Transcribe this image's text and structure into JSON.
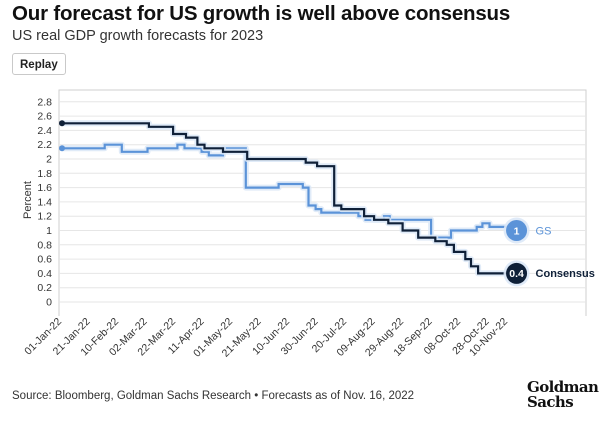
{
  "header": {
    "title": "Our forecast for US growth is well above consensus",
    "subtitle": "US real GDP growth forecasts for 2023",
    "replay_label": "Replay"
  },
  "footer": {
    "source": "Source: Bloomberg, Goldman Sachs Research • Forecasts as of Nov. 16, 2022",
    "logo_line1": "Goldman",
    "logo_line2": "Sachs"
  },
  "colors": {
    "gs": "#5b93d8",
    "consensus": "#0f2038",
    "grid": "#e6e6e6",
    "halo": "#dbe8f7"
  },
  "chart_data": {
    "type": "line",
    "title": "",
    "xlabel": "",
    "ylabel": "Percent",
    "ylim": [
      0,
      2.8
    ],
    "yticks": [
      0,
      0.2,
      0.4,
      0.6,
      0.8,
      1,
      1.2,
      1.4,
      1.6,
      1.8,
      2,
      2.2,
      2.4,
      2.6,
      2.8
    ],
    "ytick_labels": [
      "0",
      "0.2",
      "0.4",
      "0.6",
      "0.8",
      "1",
      "1.2",
      "1.4",
      "1.6",
      "1.8",
      "2",
      "2.2",
      "2.4",
      "2.6",
      "2.8"
    ],
    "xlim": [
      "2022-01-01",
      "2022-11-16"
    ],
    "xticks": [
      "2022-01-01",
      "2022-01-21",
      "2022-02-10",
      "2022-03-02",
      "2022-03-22",
      "2022-04-11",
      "2022-05-01",
      "2022-05-21",
      "2022-06-10",
      "2022-06-30",
      "2022-07-20",
      "2022-08-09",
      "2022-08-29",
      "2022-09-18",
      "2022-10-08",
      "2022-10-28",
      "2022-11-10"
    ],
    "xtick_labels": [
      "01-Jan-22",
      "21-Jan-22",
      "10-Feb-22",
      "02-Mar-22",
      "22-Mar-22",
      "11-Apr-22",
      "01-May-22",
      "21-May-22",
      "10-Jun-22",
      "30-Jun-22",
      "20-Jul-22",
      "09-Aug-22",
      "29-Aug-22",
      "18-Sep-22",
      "08-Oct-22",
      "28-Oct-22",
      "10-Nov-22"
    ],
    "grid": "horizontal",
    "series": [
      {
        "name": "GS",
        "end_label": "1",
        "step": true,
        "points": [
          [
            "2022-01-01",
            2.15
          ],
          [
            "2022-01-31",
            2.2
          ],
          [
            "2022-02-12",
            2.1
          ],
          [
            "2022-02-27",
            2.1
          ],
          [
            "2022-03-02",
            2.15
          ],
          [
            "2022-03-23",
            2.2
          ],
          [
            "2022-03-28",
            2.15
          ],
          [
            "2022-04-09",
            2.1
          ],
          [
            "2022-04-14",
            2.05
          ],
          [
            "2022-04-24",
            2.15
          ],
          [
            "2022-05-10",
            1.6
          ],
          [
            "2022-06-02",
            1.65
          ],
          [
            "2022-06-19",
            1.6
          ],
          [
            "2022-06-23",
            1.35
          ],
          [
            "2022-06-27",
            1.35
          ],
          [
            "2022-06-28",
            1.3
          ],
          [
            "2022-07-02",
            1.25
          ],
          [
            "2022-07-28",
            1.2
          ],
          [
            "2022-08-02",
            1.15
          ],
          [
            "2022-08-15",
            1.2
          ],
          [
            "2022-08-19",
            1.15
          ],
          [
            "2022-09-17",
            0.9
          ],
          [
            "2022-10-01",
            1.0
          ],
          [
            "2022-10-19",
            1.05
          ],
          [
            "2022-10-23",
            1.1
          ],
          [
            "2022-10-28",
            1.05
          ],
          [
            "2022-11-10",
            1.05
          ],
          [
            "2022-11-16",
            1.0
          ]
        ]
      },
      {
        "name": "Consensus",
        "end_label": "0.4",
        "step": true,
        "points": [
          [
            "2022-01-01",
            2.5
          ],
          [
            "2022-03-03",
            2.45
          ],
          [
            "2022-03-20",
            2.35
          ],
          [
            "2022-03-29",
            2.3
          ],
          [
            "2022-04-06",
            2.2
          ],
          [
            "2022-04-11",
            2.15
          ],
          [
            "2022-04-24",
            2.1
          ],
          [
            "2022-05-11",
            2.0
          ],
          [
            "2022-06-21",
            1.95
          ],
          [
            "2022-06-29",
            1.9
          ],
          [
            "2022-07-11",
            1.35
          ],
          [
            "2022-07-16",
            1.3
          ],
          [
            "2022-08-01",
            1.2
          ],
          [
            "2022-08-08",
            1.15
          ],
          [
            "2022-08-18",
            1.1
          ],
          [
            "2022-08-28",
            1.0
          ],
          [
            "2022-09-08",
            0.9
          ],
          [
            "2022-09-20",
            0.85
          ],
          [
            "2022-09-28",
            0.8
          ],
          [
            "2022-10-03",
            0.7
          ],
          [
            "2022-10-11",
            0.6
          ],
          [
            "2022-10-15",
            0.5
          ],
          [
            "2022-10-20",
            0.4
          ],
          [
            "2022-11-16",
            0.4
          ]
        ]
      }
    ],
    "legend": "labels at line ends"
  }
}
